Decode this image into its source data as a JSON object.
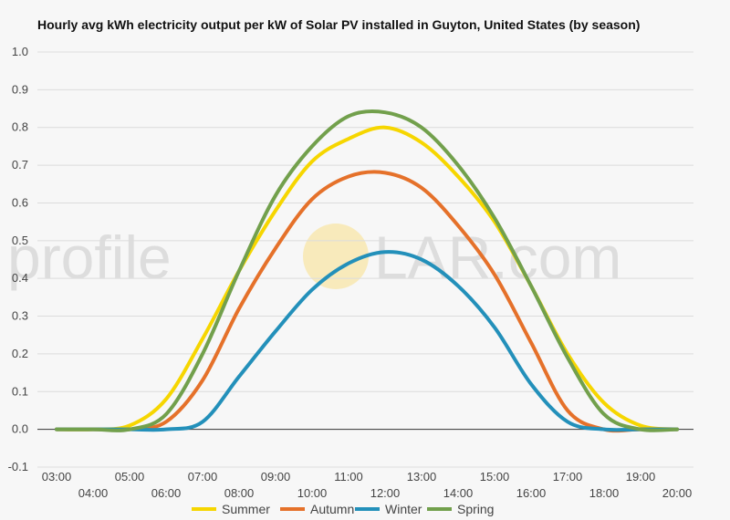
{
  "chart_data": {
    "type": "line",
    "title": "Hourly avg kWh electricity output per kW of Solar PV installed in Guyton, United States (by season)",
    "xlabel": "",
    "ylabel": "",
    "ylim": [
      -0.1,
      1.0
    ],
    "yticks": [
      "-0.1",
      "0.0",
      "0.1",
      "0.2",
      "0.3",
      "0.4",
      "0.5",
      "0.6",
      "0.7",
      "0.8",
      "0.9",
      "1.0"
    ],
    "x": [
      "03:00",
      "04:00",
      "05:00",
      "06:00",
      "07:00",
      "08:00",
      "09:00",
      "10:00",
      "11:00",
      "12:00",
      "13:00",
      "14:00",
      "15:00",
      "16:00",
      "17:00",
      "18:00",
      "19:00",
      "20:00"
    ],
    "grid": true,
    "legend_position": "bottom",
    "series": [
      {
        "name": "Summer",
        "color": "#f6d600",
        "values": [
          0.0,
          0.0,
          0.01,
          0.08,
          0.24,
          0.42,
          0.58,
          0.71,
          0.77,
          0.8,
          0.76,
          0.67,
          0.55,
          0.38,
          0.2,
          0.07,
          0.01,
          0.0
        ]
      },
      {
        "name": "Autumn",
        "color": "#e5712a",
        "values": [
          0.0,
          0.0,
          0.0,
          0.02,
          0.13,
          0.32,
          0.48,
          0.61,
          0.67,
          0.68,
          0.64,
          0.54,
          0.41,
          0.23,
          0.05,
          0.0,
          0.0,
          0.0
        ]
      },
      {
        "name": "Winter",
        "color": "#2390ba",
        "values": [
          0.0,
          0.0,
          0.0,
          0.0,
          0.02,
          0.14,
          0.26,
          0.37,
          0.44,
          0.47,
          0.45,
          0.38,
          0.27,
          0.12,
          0.02,
          0.0,
          0.0,
          0.0
        ]
      },
      {
        "name": "Spring",
        "color": "#72a04c",
        "values": [
          0.0,
          0.0,
          0.0,
          0.04,
          0.2,
          0.42,
          0.62,
          0.75,
          0.83,
          0.84,
          0.8,
          0.7,
          0.56,
          0.38,
          0.19,
          0.04,
          0.0,
          0.0
        ]
      }
    ]
  },
  "watermark": {
    "text_left": "profile",
    "text_right": "LAR.com",
    "sun_color": "#f9e08a"
  }
}
